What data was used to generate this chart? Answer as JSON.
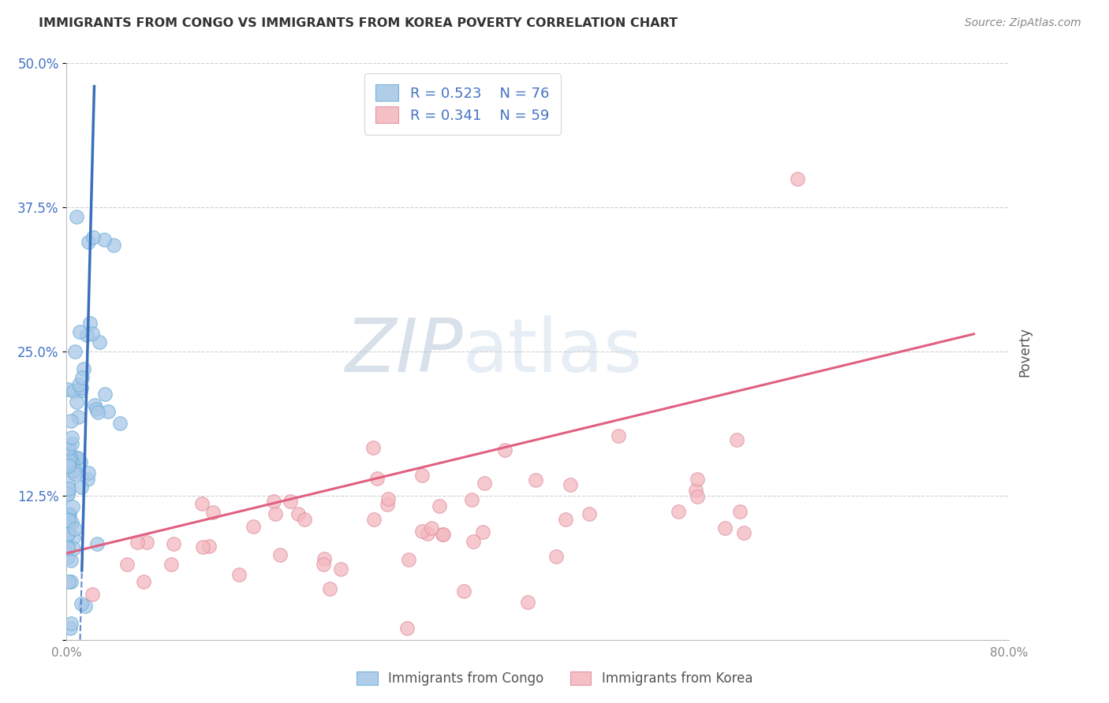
{
  "title": "IMMIGRANTS FROM CONGO VS IMMIGRANTS FROM KOREA POVERTY CORRELATION CHART",
  "source": "Source: ZipAtlas.com",
  "ylabel": "Poverty",
  "xlim": [
    0.0,
    0.8
  ],
  "ylim": [
    0.0,
    0.5
  ],
  "xtick_vals": [
    0.0,
    0.8
  ],
  "xtick_labels": [
    "0.0%",
    "80.0%"
  ],
  "ytick_vals": [
    0.0,
    0.125,
    0.25,
    0.375,
    0.5
  ],
  "ytick_labels": [
    "",
    "12.5%",
    "25.0%",
    "37.5%",
    "50.0%"
  ],
  "congo_color": "#a8c8e8",
  "congo_edge_color": "#6baed6",
  "korea_color": "#f4b8c0",
  "korea_edge_color": "#de8fa0",
  "congo_line_color": "#3a6fbd",
  "korea_line_color": "#e06080",
  "legend_R_color": "#4472c4",
  "legend_N_color": "#4472c4",
  "ytick_color": "#4472c4",
  "xtick_color": "#888888",
  "grid_color": "#d0d0d0",
  "title_color": "#333333",
  "source_color": "#888888",
  "ylabel_color": "#555555",
  "watermark_zip_color": "#c0cfe0",
  "watermark_atlas_color": "#b0c8e0",
  "bottom_label_color": "#555555",
  "legend_box_edge": "#cccccc",
  "n_congo": 76,
  "n_korea": 59
}
